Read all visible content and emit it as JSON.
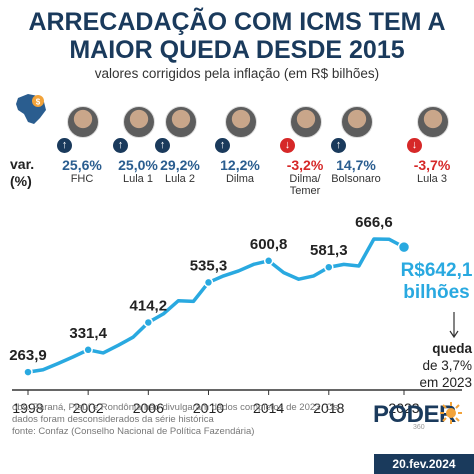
{
  "header": {
    "title_line1": "ARRECADAÇÃO COM ICMS TEM A",
    "title_line2": "MAIOR QUEDA DESDE 2015",
    "subtitle": "valores corrigidos pela inflação (em R$ bilhões)"
  },
  "var_label_1": "var.",
  "var_label_2": "(%)",
  "presidents": [
    {
      "name": "FHC",
      "var": "25,6%",
      "direction": "up"
    },
    {
      "name": "Lula 1",
      "var": "25,0%",
      "direction": "up"
    },
    {
      "name": "Lula 2",
      "var": "29,2%",
      "direction": "up"
    },
    {
      "name": "Dilma",
      "var": "12,2%",
      "direction": "up"
    },
    {
      "name": "Dilma/\nTemer",
      "var": "-3,2%",
      "direction": "down"
    },
    {
      "name": "Bolsonaro",
      "var": "14,7%",
      "direction": "up"
    },
    {
      "name": "Lula 3",
      "var": "-3,7%",
      "direction": "down"
    }
  ],
  "arrow_icons": {
    "up": "↑",
    "down": "↓"
  },
  "chart_data": {
    "type": "line",
    "title": "ARRECADAÇÃO COM ICMS TEM A MAIOR QUEDA DESDE 2015",
    "subtitle": "valores corrigidos pela inflação (em R$ bilhões)",
    "xlabel": "",
    "ylabel": "",
    "x_ticks": [
      "1998",
      "2002",
      "2006",
      "2010",
      "2014",
      "2018",
      "2023"
    ],
    "x": [
      1998,
      1999,
      2000,
      2001,
      2002,
      2003,
      2004,
      2005,
      2006,
      2007,
      2008,
      2009,
      2010,
      2011,
      2012,
      2013,
      2014,
      2015,
      2016,
      2017,
      2018,
      2019,
      2020,
      2021,
      2022,
      2023
    ],
    "series": [
      {
        "values": [
          263.9,
          271,
          290,
          310,
          331.4,
          322,
          345,
          370,
          414.2,
          440,
          480,
          478,
          535.3,
          555,
          570,
          590,
          600.8,
          565,
          545,
          555,
          581.3,
          590,
          585,
          666.6,
          666,
          642.1
        ]
      }
    ],
    "point_labels": [
      {
        "x": 1998,
        "label": "263,9"
      },
      {
        "x": 2002,
        "label": "331,4"
      },
      {
        "x": 2006,
        "label": "414,2"
      },
      {
        "x": 2010,
        "label": "535,3"
      },
      {
        "x": 2014,
        "label": "600,8"
      },
      {
        "x": 2018,
        "label": "581,3"
      },
      {
        "x": 2021,
        "label": "666,6"
      }
    ],
    "markers_at": [
      1998,
      2002,
      2006,
      2010,
      2014,
      2018,
      2023
    ],
    "ylim": [
      240,
      700
    ],
    "grid": false,
    "line_color": "#29a9e0",
    "final_value_line1": "R$642,1",
    "final_value_line2": "bilhões"
  },
  "note": {
    "line1": "queda",
    "line2": "de 3,7%",
    "line3": "em 2023"
  },
  "source": {
    "line1": "obs: Paraná, Piauí e Rondônia não divulgaram dados completos de 2023. Os",
    "line2": "dados foram desconsiderados da série histórica",
    "line3": "fonte: Confaz (Conselho Nacional de Política Fazendária)"
  },
  "logo": {
    "text": "PODER",
    "number": "360"
  },
  "date": "20.fev.2024",
  "colors": {
    "navy": "#1a3a5c",
    "accent": "#29a9e0",
    "down": "#d62828",
    "up": "#2a5d8f"
  }
}
